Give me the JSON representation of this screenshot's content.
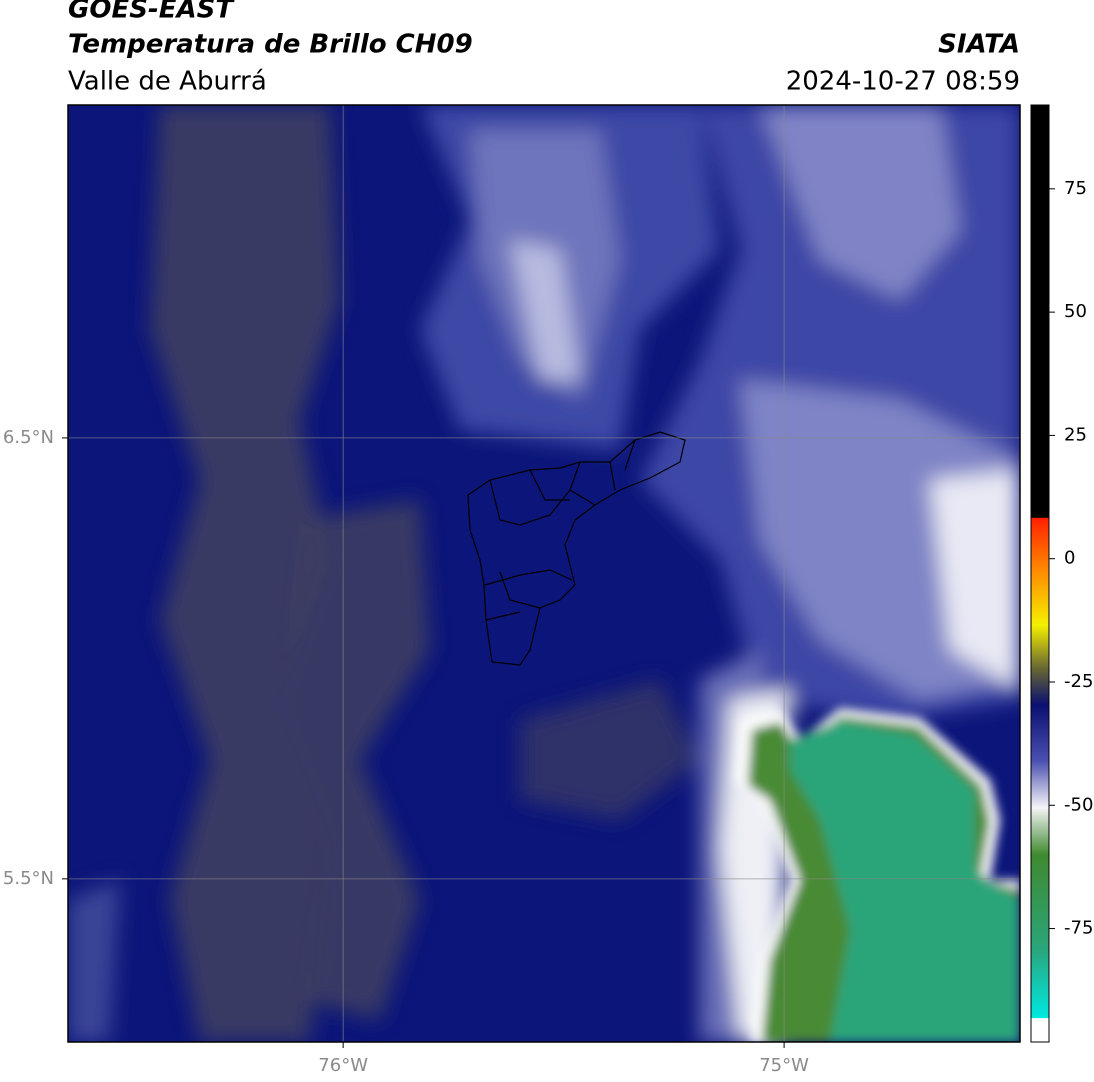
{
  "header": {
    "title": "GOES-EAST",
    "subtitle": "Temperatura de Brillo CH09",
    "region": "Valle de Aburrá",
    "source": "SIATA",
    "datetime": "2024-10-27 08:59"
  },
  "map": {
    "xlim": [
      -76.624,
      -74.465
    ],
    "ylim": [
      5.13,
      7.255
    ],
    "xticks": [
      {
        "value": -76,
        "label": "76°W"
      },
      {
        "value": -75,
        "label": "75°W"
      }
    ],
    "yticks": [
      {
        "value": 6.5,
        "label": "6.5°N"
      },
      {
        "value": 5.5,
        "label": "5.5°N"
      }
    ]
  },
  "colorbar": {
    "range": [
      -98,
      92
    ],
    "ticks": [
      75,
      50,
      25,
      0,
      -25,
      -50,
      -75
    ]
  }
}
